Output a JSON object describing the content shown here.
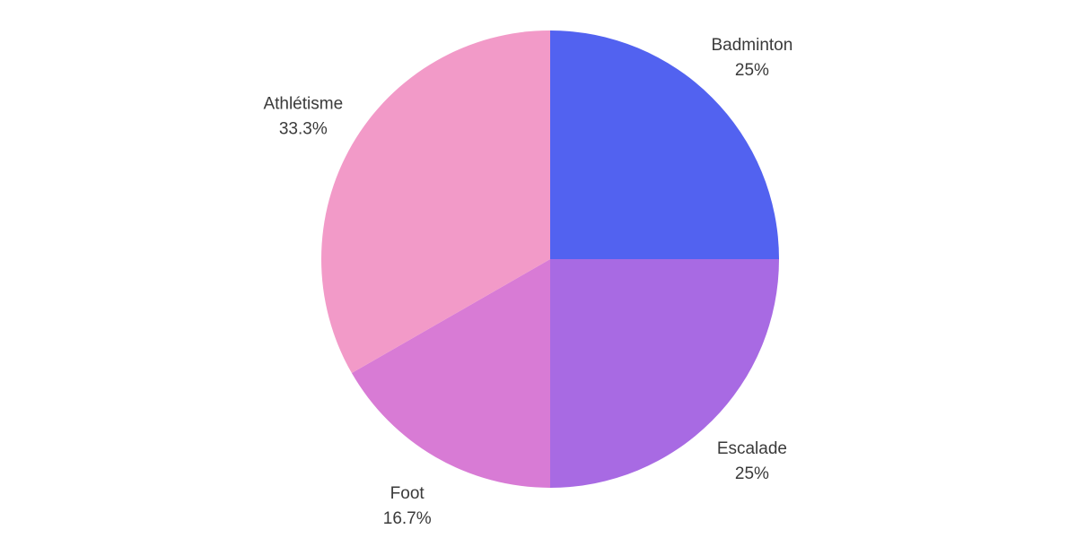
{
  "chart_data": {
    "type": "pie",
    "title": "",
    "start_angle_deg": 0,
    "direction": "clockwise",
    "slices": [
      {
        "label": "Badminton",
        "value": 25,
        "percent_label": "25%",
        "color": "#5262f0"
      },
      {
        "label": "Escalade",
        "value": 25,
        "percent_label": "25%",
        "color": "#a86ae3"
      },
      {
        "label": "Foot",
        "value": 16.7,
        "percent_label": "16.7%",
        "color": "#d87bd5"
      },
      {
        "label": "Athlétisme",
        "value": 33.3,
        "percent_label": "33.3%",
        "color": "#f29ac8"
      }
    ],
    "legend": "none",
    "labels": "outside"
  }
}
